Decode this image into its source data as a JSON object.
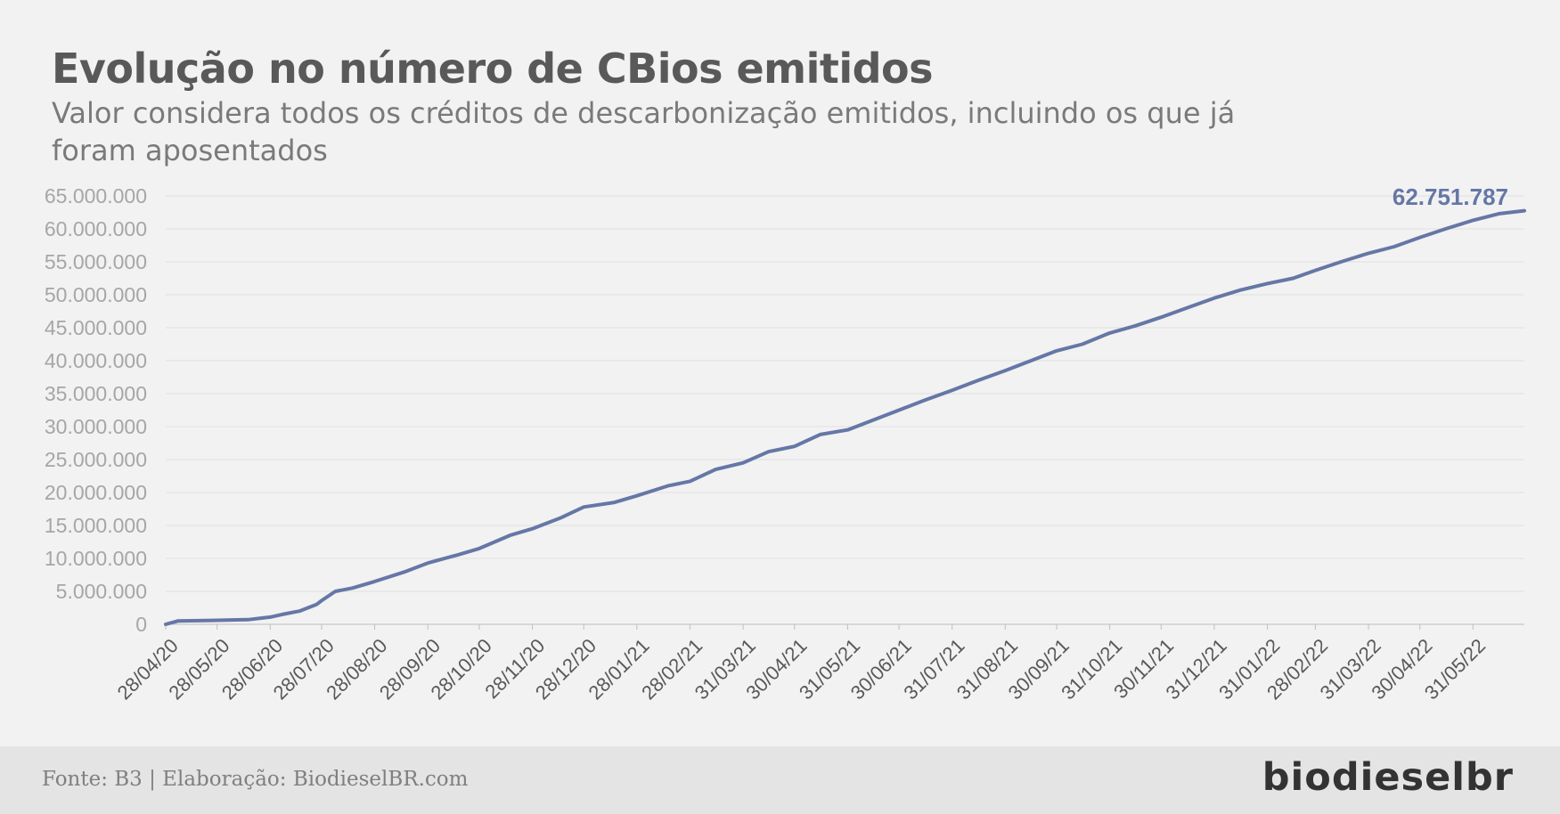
{
  "header": {
    "title": "Evolução no número de CBios emitidos",
    "subtitle": "Valor considera todos os créditos de descarbonização emitidos, incluindo os que já foram aposentados"
  },
  "footer": {
    "source": "Fonte: B3 | Elaboração: BiodieselBR.com",
    "logo": "biodieselbr"
  },
  "colors": {
    "line": "#6577a6",
    "grid": "#e0e0e0",
    "tick_text": "#a6a6a6",
    "xtick_text": "#595959"
  },
  "chart_data": {
    "type": "line",
    "ylim": [
      0,
      65000000
    ],
    "grid": true,
    "y_tick_labels": [
      "0",
      "5.000.000",
      "10.000.000",
      "15.000.000",
      "20.000.000",
      "25.000.000",
      "30.000.000",
      "35.000.000",
      "40.000.000",
      "45.000.000",
      "50.000.000",
      "55.000.000",
      "60.000.000",
      "65.000.000"
    ],
    "x_tick_labels": [
      "28/04/20",
      "28/05/20",
      "28/06/20",
      "28/07/20",
      "28/08/20",
      "28/09/20",
      "28/10/20",
      "28/11/20",
      "28/12/20",
      "28/01/21",
      "28/02/21",
      "31/03/21",
      "30/04/21",
      "31/05/21",
      "30/06/21",
      "31/07/21",
      "31/08/21",
      "30/09/21",
      "31/10/21",
      "30/11/21",
      "31/12/21",
      "31/01/22",
      "28/02/22",
      "31/03/22",
      "30/04/22",
      "31/05/22"
    ],
    "end_label": "62.751.787",
    "series": [
      {
        "x": [
          "2020-04-28",
          "2020-05-05",
          "2020-05-25",
          "2020-06-15",
          "2020-06-28",
          "2020-07-05",
          "2020-07-15",
          "2020-07-25",
          "2020-07-28",
          "2020-08-05",
          "2020-08-15",
          "2020-08-28",
          "2020-09-15",
          "2020-09-28",
          "2020-10-15",
          "2020-10-28",
          "2020-11-15",
          "2020-11-28",
          "2020-12-15",
          "2020-12-28",
          "2021-01-15",
          "2021-01-28",
          "2021-02-15",
          "2021-02-28",
          "2021-03-15",
          "2021-03-31",
          "2021-04-15",
          "2021-04-30",
          "2021-05-15",
          "2021-05-31",
          "2021-06-15",
          "2021-06-30",
          "2021-07-15",
          "2021-07-31",
          "2021-08-15",
          "2021-08-31",
          "2021-09-15",
          "2021-09-30",
          "2021-10-15",
          "2021-10-31",
          "2021-11-15",
          "2021-11-30",
          "2021-12-15",
          "2021-12-31",
          "2022-01-15",
          "2022-01-31",
          "2022-02-15",
          "2022-02-28",
          "2022-03-15",
          "2022-03-31",
          "2022-04-15",
          "2022-04-30",
          "2022-05-15",
          "2022-05-31",
          "2022-06-15",
          "2022-06-30"
        ],
        "values": [
          0,
          500000,
          600000,
          700000,
          1100000,
          1500000,
          2000000,
          3000000,
          3600000,
          5000000,
          5500000,
          6500000,
          8000000,
          9300000,
          10500000,
          11500000,
          13500000,
          14500000,
          16200000,
          17800000,
          18500000,
          19500000,
          21000000,
          21700000,
          23500000,
          24500000,
          26200000,
          27000000,
          28800000,
          29500000,
          31000000,
          32500000,
          34000000,
          35500000,
          37000000,
          38500000,
          40000000,
          41500000,
          42500000,
          44200000,
          45300000,
          46600000,
          48000000,
          49500000,
          50700000,
          51700000,
          52500000,
          53700000,
          55000000,
          56300000,
          57300000,
          58700000,
          60000000,
          61300000,
          62300000,
          62751787
        ]
      }
    ]
  }
}
